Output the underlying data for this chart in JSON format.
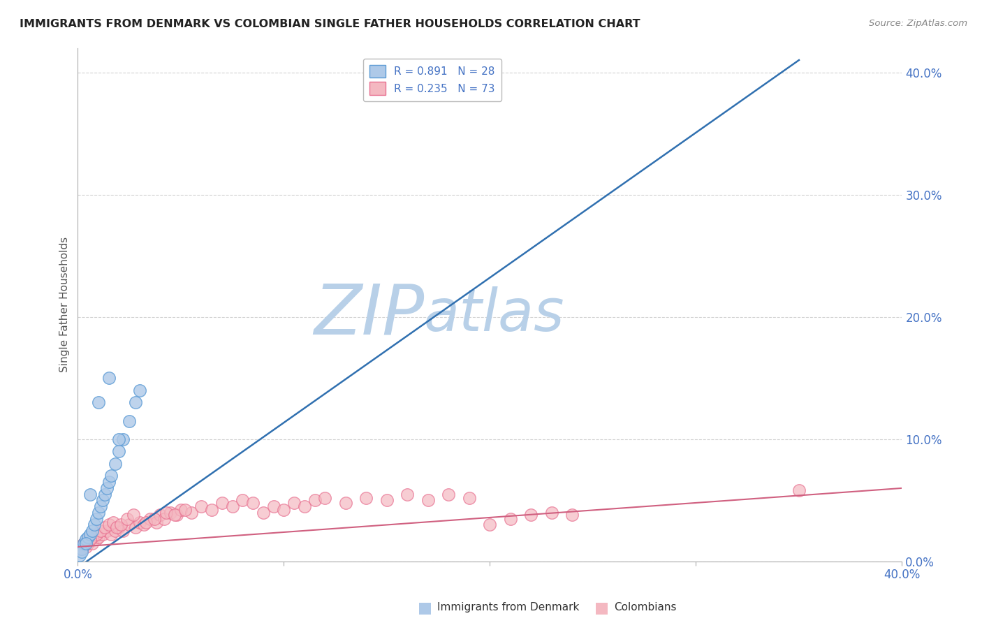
{
  "title": "IMMIGRANTS FROM DENMARK VS COLOMBIAN SINGLE FATHER HOUSEHOLDS CORRELATION CHART",
  "source": "Source: ZipAtlas.com",
  "ylabel": "Single Father Households",
  "ytick_vals": [
    0.0,
    0.1,
    0.2,
    0.3,
    0.4
  ],
  "xmin": 0.0,
  "xmax": 0.4,
  "ymin": 0.0,
  "ymax": 0.42,
  "legend_blue_label": "Immigrants from Denmark",
  "legend_pink_label": "Colombians",
  "blue_R": 0.891,
  "blue_N": 28,
  "pink_R": 0.235,
  "pink_N": 73,
  "blue_color": "#aec9e8",
  "pink_color": "#f4b8c1",
  "blue_edge": "#5b9bd5",
  "pink_edge": "#e87090",
  "trend_blue": "#3070b0",
  "trend_pink": "#d06080",
  "watermark_zip_color": "#c8ddf0",
  "watermark_atlas_color": "#c8ddf0",
  "background_color": "#ffffff",
  "blue_scatter_x": [
    0.001,
    0.002,
    0.003,
    0.004,
    0.005,
    0.006,
    0.007,
    0.008,
    0.009,
    0.01,
    0.011,
    0.012,
    0.013,
    0.014,
    0.015,
    0.016,
    0.018,
    0.02,
    0.022,
    0.025,
    0.028,
    0.03,
    0.002,
    0.004,
    0.006,
    0.01,
    0.015,
    0.02
  ],
  "blue_scatter_y": [
    0.005,
    0.01,
    0.015,
    0.018,
    0.02,
    0.022,
    0.025,
    0.03,
    0.035,
    0.04,
    0.045,
    0.05,
    0.055,
    0.06,
    0.065,
    0.07,
    0.08,
    0.09,
    0.1,
    0.115,
    0.13,
    0.14,
    0.008,
    0.015,
    0.055,
    0.13,
    0.15,
    0.1
  ],
  "pink_scatter_x": [
    0.001,
    0.002,
    0.003,
    0.004,
    0.005,
    0.006,
    0.007,
    0.008,
    0.009,
    0.01,
    0.012,
    0.014,
    0.016,
    0.018,
    0.02,
    0.022,
    0.025,
    0.028,
    0.03,
    0.032,
    0.035,
    0.038,
    0.04,
    0.042,
    0.045,
    0.048,
    0.05,
    0.055,
    0.06,
    0.065,
    0.07,
    0.075,
    0.08,
    0.085,
    0.09,
    0.095,
    0.1,
    0.105,
    0.11,
    0.115,
    0.12,
    0.13,
    0.14,
    0.15,
    0.16,
    0.17,
    0.18,
    0.19,
    0.2,
    0.21,
    0.22,
    0.23,
    0.24,
    0.003,
    0.005,
    0.007,
    0.009,
    0.011,
    0.013,
    0.015,
    0.017,
    0.019,
    0.021,
    0.024,
    0.027,
    0.033,
    0.037,
    0.043,
    0.047,
    0.052,
    0.35,
    0.002,
    0.006
  ],
  "pink_scatter_y": [
    0.01,
    0.012,
    0.015,
    0.012,
    0.015,
    0.018,
    0.015,
    0.02,
    0.018,
    0.02,
    0.022,
    0.025,
    0.022,
    0.025,
    0.028,
    0.025,
    0.03,
    0.028,
    0.032,
    0.03,
    0.035,
    0.032,
    0.038,
    0.035,
    0.04,
    0.038,
    0.042,
    0.04,
    0.045,
    0.042,
    0.048,
    0.045,
    0.05,
    0.048,
    0.04,
    0.045,
    0.042,
    0.048,
    0.045,
    0.05,
    0.052,
    0.048,
    0.052,
    0.05,
    0.055,
    0.05,
    0.055,
    0.052,
    0.03,
    0.035,
    0.038,
    0.04,
    0.038,
    0.015,
    0.018,
    0.02,
    0.022,
    0.025,
    0.028,
    0.03,
    0.032,
    0.028,
    0.03,
    0.035,
    0.038,
    0.032,
    0.035,
    0.04,
    0.038,
    0.042,
    0.058,
    0.012,
    0.018
  ],
  "blue_trend_x0": 0.0,
  "blue_trend_y0": -0.005,
  "blue_trend_x1": 0.35,
  "blue_trend_y1": 0.41,
  "pink_trend_x0": 0.0,
  "pink_trend_y0": 0.012,
  "pink_trend_x1": 0.4,
  "pink_trend_y1": 0.06
}
